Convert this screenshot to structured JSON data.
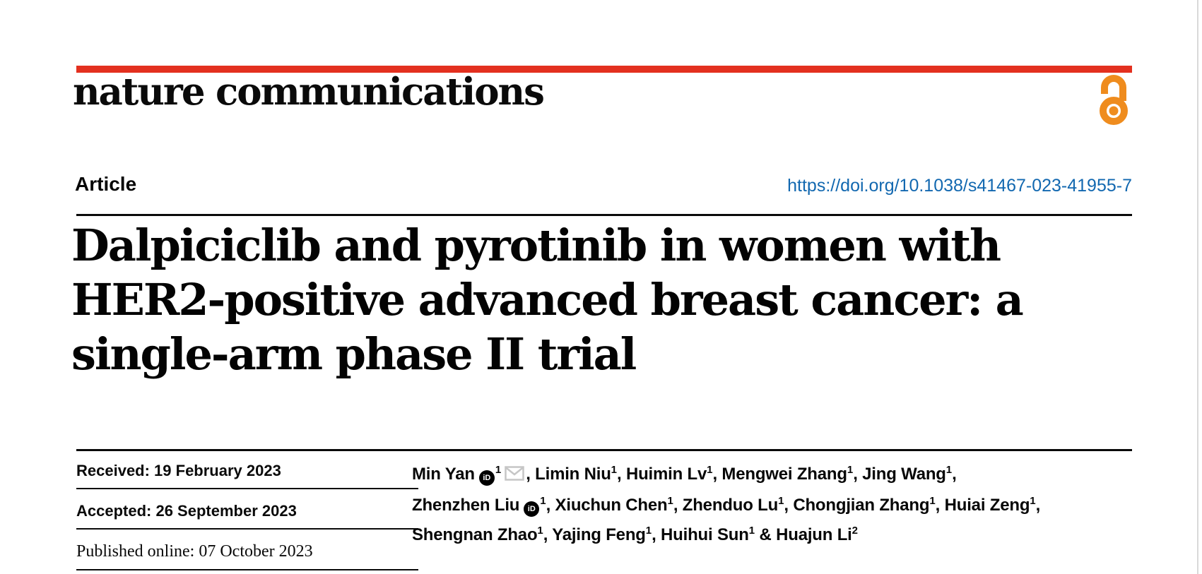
{
  "theme": {
    "accent_red": "#e3301f",
    "link_blue": "#1268b0",
    "oa_orange": "#ef8c1e",
    "icon_gray": "#c6c6c6",
    "edge_gray": "#d9d9d9"
  },
  "masthead": {
    "journal": "nature communications",
    "open_access_icon": "open-access-padlock-icon"
  },
  "article_header": {
    "type_label": "Article",
    "doi": "https://doi.org/10.1038/s41467-023-41955-7"
  },
  "title": {
    "lines": [
      "Dalpiciclib and pyrotinib in women with",
      "HER2-positive advanced breast cancer: a",
      "single-arm phase II trial"
    ]
  },
  "dates": {
    "received": "Received: 19 February 2023",
    "accepted": "Accepted: 26 September 2023",
    "published": "Published online: 07 October 2023"
  },
  "authors": {
    "orcid_label": "iD",
    "lines": [
      [
        {
          "text": "Min Yan"
        },
        {
          "icon": "orcid"
        },
        {
          "sup": "1"
        },
        {
          "icon": "email"
        },
        {
          "text": ", Limin Niu"
        },
        {
          "sup": "1"
        },
        {
          "text": ", Huimin Lv"
        },
        {
          "sup": "1"
        },
        {
          "text": ", Mengwei Zhang"
        },
        {
          "sup": "1"
        },
        {
          "text": ", Jing Wang"
        },
        {
          "sup": "1"
        },
        {
          "text": ","
        }
      ],
      [
        {
          "text": "Zhenzhen Liu"
        },
        {
          "icon": "orcid"
        },
        {
          "sup": "1"
        },
        {
          "text": ", Xiuchun Chen"
        },
        {
          "sup": "1"
        },
        {
          "text": ", Zhenduo Lu"
        },
        {
          "sup": "1"
        },
        {
          "text": ", Chongjian Zhang"
        },
        {
          "sup": "1"
        },
        {
          "text": ", Huiai Zeng"
        },
        {
          "sup": "1"
        },
        {
          "text": ","
        }
      ],
      [
        {
          "text": "Shengnan Zhao"
        },
        {
          "sup": "1"
        },
        {
          "text": ", Yajing Feng"
        },
        {
          "sup": "1"
        },
        {
          "text": ", Huihui Sun"
        },
        {
          "sup": "1"
        },
        {
          "text": " & Huajun Li"
        },
        {
          "sup": "2"
        }
      ]
    ]
  }
}
